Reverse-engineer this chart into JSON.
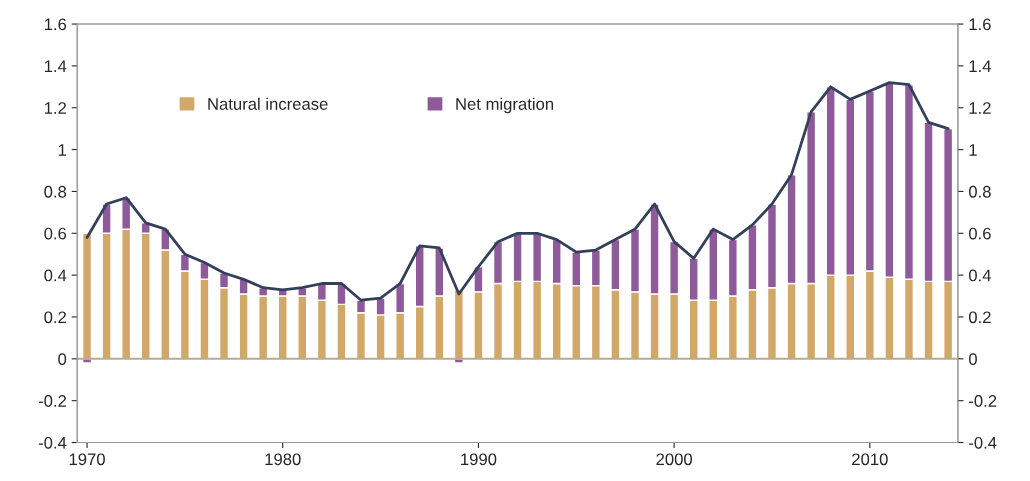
{
  "chart_data": {
    "type": "bar",
    "stacked": true,
    "legend": "top left",
    "grid": false,
    "ref_lines": [
      {
        "axis": "y",
        "value": 0,
        "color": "#b8ac90"
      }
    ],
    "x": [
      1970,
      1971,
      1972,
      1973,
      1974,
      1975,
      1976,
      1977,
      1978,
      1979,
      1980,
      1981,
      1982,
      1983,
      1984,
      1985,
      1986,
      1987,
      1988,
      1989,
      1990,
      1991,
      1992,
      1993,
      1994,
      1995,
      1996,
      1997,
      1998,
      1999,
      2000,
      2001,
      2002,
      2003,
      2004,
      2005,
      2006,
      2007,
      2008,
      2009,
      2010,
      2011,
      2012,
      2013,
      2014
    ],
    "series": [
      {
        "name": "Natural increase",
        "color": "#d2a868",
        "values": [
          0.6,
          0.6,
          0.62,
          0.6,
          0.52,
          0.42,
          0.38,
          0.34,
          0.31,
          0.3,
          0.3,
          0.3,
          0.28,
          0.26,
          0.22,
          0.21,
          0.22,
          0.25,
          0.3,
          0.33,
          0.32,
          0.36,
          0.37,
          0.37,
          0.36,
          0.35,
          0.35,
          0.33,
          0.32,
          0.31,
          0.31,
          0.28,
          0.28,
          0.3,
          0.33,
          0.34,
          0.36,
          0.36,
          0.4,
          0.4,
          0.42,
          0.39,
          0.38,
          0.37,
          0.37
        ]
      },
      {
        "name": "Net migration",
        "color": "#8e5a9a",
        "values": [
          -0.02,
          0.14,
          0.15,
          0.05,
          0.1,
          0.08,
          0.08,
          0.07,
          0.07,
          0.04,
          0.03,
          0.04,
          0.08,
          0.1,
          0.06,
          0.08,
          0.14,
          0.29,
          0.23,
          -0.02,
          0.12,
          0.2,
          0.23,
          0.23,
          0.21,
          0.16,
          0.17,
          0.24,
          0.3,
          0.43,
          0.25,
          0.2,
          0.34,
          0.27,
          0.31,
          0.4,
          0.52,
          0.82,
          0.9,
          0.84,
          0.86,
          0.93,
          0.93,
          0.76,
          0.73
        ]
      },
      {
        "type": "line",
        "color": "#33405a",
        "values": [
          0.58,
          0.74,
          0.77,
          0.65,
          0.62,
          0.5,
          0.46,
          0.41,
          0.38,
          0.34,
          0.33,
          0.34,
          0.36,
          0.36,
          0.28,
          0.29,
          0.36,
          0.54,
          0.53,
          0.31,
          0.44,
          0.56,
          0.6,
          0.6,
          0.57,
          0.51,
          0.52,
          0.57,
          0.62,
          0.74,
          0.56,
          0.48,
          0.62,
          0.57,
          0.64,
          0.74,
          0.88,
          1.18,
          1.3,
          1.24,
          1.28,
          1.32,
          1.31,
          1.13,
          1.1
        ]
      }
    ],
    "xlim": [
      1969.5,
      2014.5
    ],
    "xticks": [
      1970,
      1980,
      1990,
      2000,
      2010
    ],
    "ylim": [
      -0.4,
      1.6
    ],
    "yticks": [
      -0.4,
      -0.2,
      0,
      0.2,
      0.4,
      0.6,
      0.8,
      1,
      1.2,
      1.4,
      1.6
    ],
    "y2lim": [
      -0.4,
      1.6
    ],
    "y2ticks": [
      -0.4,
      -0.2,
      0,
      0.2,
      0.4,
      0.6,
      0.8,
      1,
      1.2,
      1.4,
      1.6
    ]
  }
}
